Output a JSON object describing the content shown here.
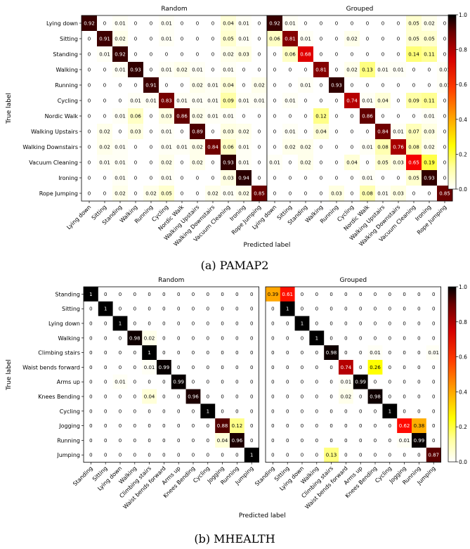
{
  "colorbar_ticks": [
    "0.0",
    "0.2",
    "0.4",
    "0.6",
    "0.8",
    "1.0"
  ],
  "chart_data": [
    {
      "type": "heatmap",
      "caption": "(a) PAMAP2",
      "xlabel": "Predicted label",
      "ylabel": "True label",
      "colormap": "hot_r",
      "range": [
        0,
        1
      ],
      "labels": [
        "Lying down",
        "Sitting",
        "Standing",
        "Walking",
        "Running",
        "Cycling",
        "Nordic Walk",
        "Walking Upstairs",
        "Walking Downstairs",
        "Vacuum Cleaning",
        "Ironing",
        "Rope Jumping"
      ],
      "panels": [
        {
          "title": "Random",
          "values": [
            [
              "0.92",
              "0",
              "0.01",
              "0",
              "0",
              "0.01",
              "0",
              "0",
              "0",
              "0.04",
              "0.01",
              "0"
            ],
            [
              "0",
              "0.91",
              "0.02",
              "0",
              "0",
              "0.01",
              "0",
              "0",
              "0",
              "0.05",
              "0.01",
              "0"
            ],
            [
              "0",
              "0.01",
              "0.92",
              "0",
              "0",
              "0",
              "0",
              "0",
              "0",
              "0.02",
              "0.03",
              "0"
            ],
            [
              "0",
              "0",
              "0.01",
              "0.93",
              "0",
              "0.01",
              "0.02",
              "0.01",
              "0",
              "0.01",
              "0",
              "0"
            ],
            [
              "0",
              "0",
              "0",
              "0",
              "0.91",
              "0",
              "0",
              "0.02",
              "0.01",
              "0.04",
              "0",
              "0.02"
            ],
            [
              "0",
              "0",
              "0",
              "0.01",
              "0.01",
              "0.83",
              "0.01",
              "0.01",
              "0.01",
              "0.09",
              "0.01",
              "0.01"
            ],
            [
              "0",
              "0",
              "0.01",
              "0.06",
              "0",
              "0.03",
              "0.86",
              "0.02",
              "0.01",
              "0.01",
              "0",
              "0"
            ],
            [
              "0",
              "0.02",
              "0",
              "0.03",
              "0",
              "0.01",
              "0",
              "0.89",
              "0",
              "0.03",
              "0.02",
              "0"
            ],
            [
              "0",
              "0.02",
              "0.01",
              "0",
              "0",
              "0.01",
              "0.01",
              "0.02",
              "0.84",
              "0.06",
              "0.01",
              "0"
            ],
            [
              "0",
              "0.01",
              "0.01",
              "0",
              "0",
              "0.02",
              "0",
              "0.02",
              "0",
              "0.93",
              "0.01",
              "0"
            ],
            [
              "0",
              "0",
              "0.01",
              "0",
              "0",
              "0.01",
              "0",
              "0",
              "0",
              "0.03",
              "0.94",
              "0"
            ],
            [
              "0",
              "0",
              "0.02",
              "0",
              "0.02",
              "0.05",
              "0",
              "0",
              "0.02",
              "0.01",
              "0.02",
              "0.85"
            ]
          ]
        },
        {
          "title": "Grouped",
          "values": [
            [
              "0.92",
              "0.01",
              "0",
              "0",
              "0",
              "0",
              "0",
              "0",
              "0",
              "0.05",
              "0.02",
              "0"
            ],
            [
              "0.06",
              "0.81",
              "0.01",
              "0",
              "0",
              "0.02",
              "0",
              "0",
              "0",
              "0.05",
              "0.05",
              "0"
            ],
            [
              "0",
              "0.06",
              "0.68",
              "0",
              "0",
              "0",
              "0",
              "0",
              "0",
              "0.14",
              "0.11",
              "0"
            ],
            [
              "0",
              "0",
              "0",
              "0.81",
              "0",
              "0.02",
              "0.13",
              "0.01",
              "0.01",
              "0",
              "0",
              "0.01"
            ],
            [
              "0",
              "0",
              "0.01",
              "0",
              "0.93",
              "0",
              "0",
              "0",
              "0",
              "0",
              "0",
              "0.01"
            ],
            [
              "0",
              "0.01",
              "0",
              "0",
              "0",
              "0.74",
              "0.01",
              "0.04",
              "0",
              "0.09",
              "0.11",
              "0"
            ],
            [
              "0",
              "0",
              "0",
              "0.12",
              "0",
              "0",
              "0.86",
              "0",
              "0",
              "0",
              "0.01",
              "0"
            ],
            [
              "0",
              "0.01",
              "0",
              "0.04",
              "0",
              "0",
              "0",
              "0.84",
              "0.01",
              "0.07",
              "0.03",
              "0"
            ],
            [
              "0",
              "0.02",
              "0.02",
              "0",
              "0",
              "0",
              "0.01",
              "0.08",
              "0.76",
              "0.08",
              "0.02",
              "0"
            ],
            [
              "0.01",
              "0",
              "0.02",
              "0",
              "0",
              "0.04",
              "0",
              "0.05",
              "0.03",
              "0.65",
              "0.19",
              "0"
            ],
            [
              "0",
              "0",
              "0",
              "0",
              "0",
              "0",
              "0.01",
              "0",
              "0",
              "0.05",
              "0.93",
              "0"
            ],
            [
              "0",
              "0",
              "0",
              "0",
              "0.03",
              "0",
              "0.08",
              "0.01",
              "0.03",
              "0",
              "0",
              "0.85"
            ]
          ]
        }
      ]
    },
    {
      "type": "heatmap",
      "caption": "(b) MHEALTH",
      "xlabel": "Predicted label",
      "ylabel": "True label",
      "colormap": "hot_r",
      "range": [
        0,
        1
      ],
      "labels": [
        "Standing",
        "Sitting",
        "Lying down",
        "Walking",
        "Climbing stairs",
        "Waist bends forward",
        "Arms up",
        "Knees Bending",
        "Cycling",
        "Jogging",
        "Running",
        "Jumping"
      ],
      "panels": [
        {
          "title": "Random",
          "values": [
            [
              "1",
              "0",
              "0",
              "0",
              "0",
              "0",
              "0",
              "0",
              "0",
              "0",
              "0",
              "0"
            ],
            [
              "0",
              "1",
              "0",
              "0",
              "0",
              "0",
              "0",
              "0",
              "0",
              "0",
              "0",
              "0"
            ],
            [
              "0",
              "0",
              "1",
              "0",
              "0",
              "0",
              "0",
              "0",
              "0",
              "0",
              "0",
              "0"
            ],
            [
              "0",
              "0",
              "0",
              "0.98",
              "0.02",
              "0",
              "0",
              "0",
              "0",
              "0",
              "0",
              "0"
            ],
            [
              "0",
              "0",
              "0",
              "0",
              "1",
              "0",
              "0",
              "0",
              "0",
              "0",
              "0",
              "0"
            ],
            [
              "0",
              "0",
              "0",
              "0",
              "0.01",
              "0.99",
              "0",
              "0",
              "0",
              "0",
              "0",
              "0"
            ],
            [
              "0",
              "0",
              "0.01",
              "0",
              "0",
              "0",
              "0.99",
              "0",
              "0",
              "0",
              "0",
              "0"
            ],
            [
              "0",
              "0",
              "0",
              "0",
              "0.04",
              "0",
              "0",
              "0.96",
              "0",
              "0",
              "0",
              "0"
            ],
            [
              "0",
              "0",
              "0",
              "0",
              "0",
              "0",
              "0",
              "0",
              "1",
              "0",
              "0",
              "0"
            ],
            [
              "0",
              "0",
              "0",
              "0",
              "0",
              "0",
              "0",
              "0",
              "0",
              "0.88",
              "0.12",
              "0"
            ],
            [
              "0",
              "0",
              "0",
              "0",
              "0",
              "0",
              "0",
              "0",
              "0",
              "0.04",
              "0.96",
              "0"
            ],
            [
              "0",
              "0",
              "0",
              "0",
              "0",
              "0",
              "0",
              "0",
              "0",
              "0",
              "0",
              "1"
            ]
          ]
        },
        {
          "title": "Grouped",
          "values": [
            [
              "0.39",
              "0.61",
              "0",
              "0",
              "0",
              "0",
              "0",
              "0",
              "0",
              "0",
              "0",
              "0"
            ],
            [
              "0",
              "1",
              "0",
              "0",
              "0",
              "0",
              "0",
              "0",
              "0",
              "0",
              "0",
              "0"
            ],
            [
              "0",
              "0",
              "1",
              "0",
              "0",
              "0",
              "0",
              "0",
              "0",
              "0",
              "0",
              "0"
            ],
            [
              "0",
              "0",
              "0",
              "1",
              "0",
              "0",
              "0",
              "0",
              "0",
              "0",
              "0",
              "0"
            ],
            [
              "0",
              "0",
              "0",
              "0",
              "0.98",
              "0",
              "0",
              "0.01",
              "0",
              "0",
              "0",
              "0.01"
            ],
            [
              "0",
              "0",
              "0",
              "0",
              "0",
              "0.74",
              "0",
              "0.26",
              "0",
              "0",
              "0",
              "0"
            ],
            [
              "0",
              "0",
              "0",
              "0",
              "0",
              "0.01",
              "0.99",
              "0",
              "0",
              "0",
              "0",
              "0"
            ],
            [
              "0",
              "0",
              "0",
              "0",
              "0",
              "0.02",
              "0",
              "0.98",
              "0",
              "0",
              "0",
              "0"
            ],
            [
              "0",
              "0",
              "0",
              "0",
              "0",
              "0",
              "0",
              "0",
              "1",
              "0",
              "0",
              "0"
            ],
            [
              "0",
              "0",
              "0",
              "0",
              "0",
              "0",
              "0",
              "0",
              "0",
              "0.62",
              "0.38",
              "0"
            ],
            [
              "0",
              "0",
              "0",
              "0",
              "0",
              "0",
              "0",
              "0",
              "0",
              "0.01",
              "0.99",
              "0"
            ],
            [
              "0",
              "0",
              "0",
              "0",
              "0.13",
              "0",
              "0",
              "0",
              "0",
              "0",
              "0",
              "0.87"
            ]
          ]
        }
      ]
    }
  ]
}
